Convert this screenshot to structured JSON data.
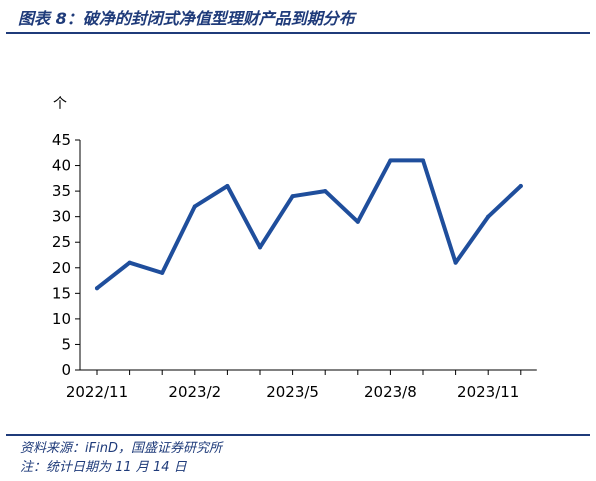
{
  "figure": {
    "title": "图表 8：破净的封闭式净值型理财产品到期分布",
    "source": "资料来源：iFinD，国盛证券研究所",
    "note": "注：统计日期为 11 月 14 日"
  },
  "chart_data": {
    "type": "line",
    "unit": "个",
    "x": [
      "2022/11",
      "2022/12",
      "2023/1",
      "2023/2",
      "2023/3",
      "2023/4",
      "2023/5",
      "2023/6",
      "2023/7",
      "2023/8",
      "2023/9",
      "2023/10",
      "2023/11",
      "2023/12"
    ],
    "x_tick_labels": [
      "2022/11",
      "2023/2",
      "2023/5",
      "2023/8",
      "2023/11"
    ],
    "values": [
      16,
      21,
      19,
      32,
      36,
      24,
      34,
      35,
      29,
      41,
      41,
      21,
      30,
      36
    ],
    "ylim": [
      0,
      45
    ],
    "y_ticks": [
      0,
      5,
      10,
      15,
      20,
      25,
      30,
      35,
      40,
      45
    ],
    "grid": false,
    "line_color": "#1f4e9c"
  }
}
